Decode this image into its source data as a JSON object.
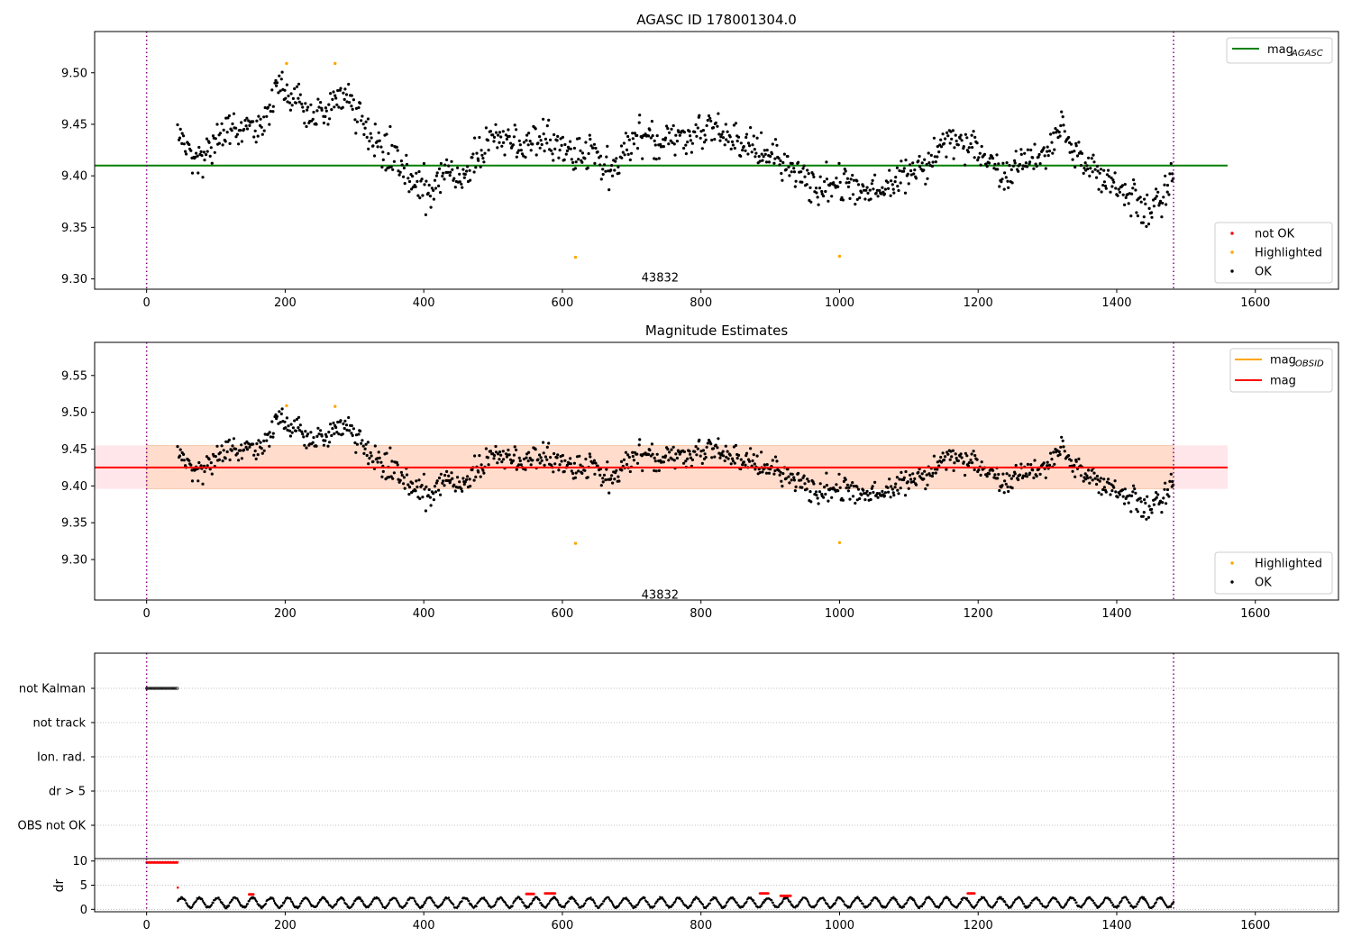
{
  "figure": {
    "colors": {
      "ok": "#000000",
      "not_ok": "#ff0000",
      "highlighted": "#ffa500",
      "mag_agasc": "#008000",
      "mag": "#ff0000",
      "mag_obsid": "#ffa500",
      "band_inner": "#ffdccc",
      "band_outer": "#ffe6ea",
      "obs_marker": "#800080",
      "grid": "#b0b0b0"
    }
  },
  "chart_data": [
    {
      "type": "scatter",
      "title": "AGASC ID 178001304.0",
      "xlim": [
        -75,
        1720
      ],
      "ylim": [
        9.29,
        9.54
      ],
      "xticks": [
        0,
        200,
        400,
        600,
        800,
        1000,
        1200,
        1400,
        1600
      ],
      "yticks": [
        "9.30",
        "9.35",
        "9.40",
        "9.45",
        "9.50"
      ],
      "lines": [
        {
          "name": "mag_AGASC",
          "y": 9.41,
          "x_range": [
            -75,
            1560
          ]
        }
      ],
      "obs_markers_x": [
        0,
        1482
      ],
      "annotations": [
        {
          "text": "43832",
          "x": 741,
          "y": 9.302
        }
      ],
      "highlighted_points": [
        [
          202,
          9.509
        ],
        [
          272,
          9.509
        ],
        [
          619,
          9.321
        ],
        [
          1000,
          9.322
        ]
      ],
      "legend_lines": [
        {
          "name": "mag_AGASC",
          "label": "mag",
          "sub": "AGASC"
        }
      ],
      "legend_points": [
        {
          "name": "not OK",
          "label": "not OK"
        },
        {
          "name": "Highlighted",
          "label": "Highlighted"
        },
        {
          "name": "OK",
          "label": "OK"
        }
      ],
      "series": [
        {
          "name": "OK",
          "type": "scatter",
          "x_range": [
            45,
            1482
          ],
          "n_points": 1070,
          "trend_x": [
            45,
            60,
            75,
            90,
            105,
            120,
            135,
            150,
            165,
            180,
            195,
            210,
            225,
            240,
            255,
            270,
            285,
            300,
            315,
            330,
            345,
            360,
            375,
            390,
            405,
            420,
            435,
            450,
            465,
            480,
            495,
            510,
            525,
            540,
            555,
            570,
            585,
            600,
            615,
            630,
            645,
            660,
            675,
            690,
            705,
            720,
            735,
            750,
            765,
            780,
            795,
            810,
            825,
            840,
            855,
            870,
            885,
            900,
            915,
            930,
            945,
            960,
            975,
            990,
            1005,
            1020,
            1035,
            1050,
            1065,
            1080,
            1095,
            1110,
            1125,
            1140,
            1155,
            1170,
            1185,
            1200,
            1215,
            1230,
            1245,
            1260,
            1275,
            1290,
            1305,
            1320,
            1335,
            1350,
            1365,
            1380,
            1395,
            1410,
            1425,
            1440,
            1455,
            1470,
            1482
          ],
          "trend_y": [
            9.44,
            9.425,
            9.415,
            9.425,
            9.44,
            9.445,
            9.445,
            9.45,
            9.452,
            9.47,
            9.485,
            9.475,
            9.465,
            9.455,
            9.46,
            9.472,
            9.478,
            9.47,
            9.45,
            9.43,
            9.425,
            9.42,
            9.405,
            9.39,
            9.385,
            9.395,
            9.405,
            9.395,
            9.405,
            9.42,
            9.435,
            9.44,
            9.435,
            9.43,
            9.435,
            9.44,
            9.435,
            9.43,
            9.425,
            9.42,
            9.425,
            9.405,
            9.405,
            9.425,
            9.435,
            9.44,
            9.43,
            9.435,
            9.44,
            9.435,
            9.44,
            9.45,
            9.445,
            9.44,
            9.435,
            9.43,
            9.425,
            9.42,
            9.415,
            9.41,
            9.4,
            9.39,
            9.385,
            9.39,
            9.4,
            9.385,
            9.38,
            9.39,
            9.39,
            9.395,
            9.4,
            9.405,
            9.41,
            9.42,
            9.44,
            9.435,
            9.43,
            9.425,
            9.41,
            9.405,
            9.395,
            9.41,
            9.415,
            9.42,
            9.43,
            9.445,
            9.43,
            9.41,
            9.405,
            9.4,
            9.395,
            9.385,
            9.375,
            9.37,
            9.37,
            9.385,
            9.405
          ],
          "noise": 0.009
        },
        {
          "name": "Highlighted",
          "type": "scatter"
        },
        {
          "name": "not OK",
          "type": "scatter"
        }
      ]
    },
    {
      "type": "scatter",
      "title": "Magnitude Estimates",
      "xlim": [
        -75,
        1720
      ],
      "ylim": [
        9.245,
        9.595
      ],
      "xticks": [
        0,
        200,
        400,
        600,
        800,
        1000,
        1200,
        1400,
        1600
      ],
      "yticks": [
        "9.30",
        "9.35",
        "9.40",
        "9.45",
        "9.50",
        "9.55"
      ],
      "lines": [
        {
          "name": "mag",
          "y": 9.425,
          "x_range": [
            -75,
            1560
          ]
        },
        {
          "name": "mag_OBSID",
          "y": 9.425,
          "x_range": [
            -75,
            1560
          ]
        }
      ],
      "bands": [
        {
          "name": "mag_obsid_band",
          "y_range": [
            9.396,
            9.455
          ],
          "x_range": [
            0,
            1482
          ]
        },
        {
          "name": "mag_band",
          "y_range": [
            9.396,
            9.455
          ],
          "x_range": [
            -75,
            1560
          ]
        }
      ],
      "obs_markers_x": [
        0,
        1482
      ],
      "annotations": [
        {
          "text": "43832",
          "x": 741,
          "y": 9.253
        }
      ],
      "highlighted_points": [
        [
          202,
          9.509
        ],
        [
          272,
          9.508
        ],
        [
          619,
          9.322
        ],
        [
          1000,
          9.323
        ]
      ],
      "legend_lines": [
        {
          "name": "mag_OBSID",
          "label": "mag",
          "sub": "OBSID"
        },
        {
          "name": "mag",
          "label": "mag",
          "sub": ""
        }
      ],
      "legend_points": [
        {
          "name": "Highlighted",
          "label": "Highlighted"
        },
        {
          "name": "OK",
          "label": "OK"
        }
      ]
    },
    {
      "type": "scatter",
      "xlim": [
        -75,
        1720
      ],
      "categories": [
        "not Kalman",
        "not track",
        "Ion. rad.",
        "dr > 5",
        "OBS not OK"
      ],
      "flag_ranges": [
        {
          "category": "not Kalman",
          "x_range": [
            0,
            45
          ]
        }
      ],
      "obs_markers_x": [
        0,
        1482
      ]
    },
    {
      "type": "scatter",
      "ylabel": "dr",
      "xlim": [
        -75,
        1720
      ],
      "ylim": [
        -0.5,
        10.5
      ],
      "yticks": [
        "0",
        "5",
        "10"
      ],
      "xticks": [
        0,
        200,
        400,
        600,
        800,
        1000,
        1200,
        1400,
        1600
      ],
      "obs_markers_x": [
        0,
        1482
      ],
      "not_ok_ranges": [
        [
          0,
          45,
          9.7
        ],
        [
          148,
          155,
          3.1
        ],
        [
          548,
          560,
          3.2
        ],
        [
          575,
          590,
          3.3
        ],
        [
          885,
          898,
          3.3
        ],
        [
          915,
          930,
          2.8
        ],
        [
          1185,
          1195,
          3.3
        ]
      ],
      "series": [
        {
          "name": "dr",
          "x_range": [
            45,
            1482
          ],
          "baseline": 1.4,
          "amplitude": 1.0
        }
      ]
    }
  ]
}
